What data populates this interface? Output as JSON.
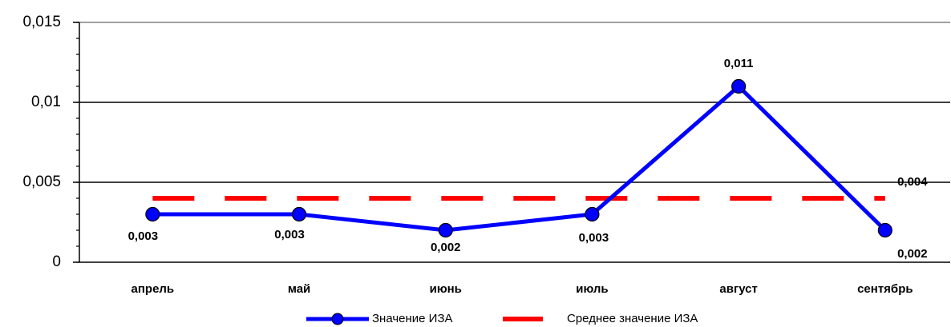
{
  "chart_data": {
    "type": "line",
    "categories": [
      "апрель",
      "май",
      "июнь",
      "июль",
      "август",
      "сентябрь"
    ],
    "series": [
      {
        "name": "Значение ИЗА",
        "color": "#0000ff",
        "values": [
          0.003,
          0.003,
          0.002,
          0.003,
          0.011,
          0.002
        ],
        "value_labels": [
          "0,003",
          "0,003",
          "0,002",
          "0,003",
          "0,011",
          "0,002"
        ]
      },
      {
        "name": "Среднее значение ИЗА",
        "color": "#ff0000",
        "dashed": true,
        "values": [
          0.004,
          0.004,
          0.004,
          0.004,
          0.004,
          0.004
        ],
        "value_labels": [
          null,
          null,
          null,
          null,
          null,
          "0,004"
        ]
      }
    ],
    "ylim": [
      0,
      0.015
    ],
    "yticks": [
      0,
      {
        "value": 0.005,
        "label": "0,005"
      },
      {
        "value": 0.01,
        "label": "0,01"
      },
      {
        "value": 0.015,
        "label": "0,015"
      }
    ],
    "grid": true
  }
}
